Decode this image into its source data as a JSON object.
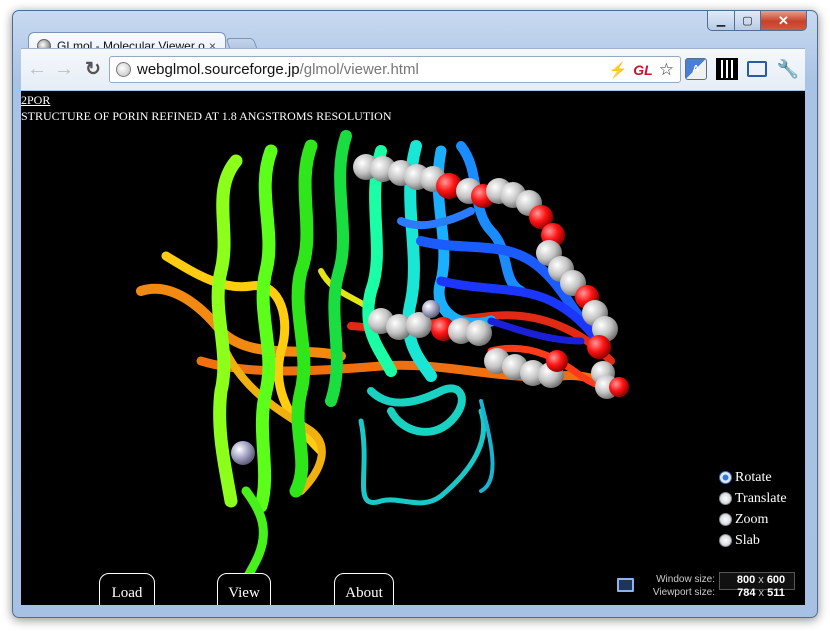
{
  "tab": {
    "title": "GLmol - Molecular Viewer on WebGL",
    "close_glyph": "×"
  },
  "window_controls": {
    "minimize": "▁",
    "maximize": "▢",
    "close": "✕"
  },
  "toolbar": {
    "back_glyph": "←",
    "forward_glyph": "→",
    "reload_glyph": "↻",
    "url_host": "webglmol.sourceforge.jp",
    "url_path": "/glmol/viewer.html",
    "gl_badge": "GL",
    "bolt_glyph": "⚡",
    "star_glyph": "☆",
    "translate_glyph": "A",
    "wrench_glyph": "🔧"
  },
  "structure": {
    "pdb_id": "2POR",
    "title": "STRUCTURE OF PORIN REFINED AT 1.8 ANGSTROMS RESOLUTION"
  },
  "modes": [
    {
      "label": "Rotate",
      "checked": true
    },
    {
      "label": "Translate",
      "checked": false
    },
    {
      "label": "Zoom",
      "checked": false
    },
    {
      "label": "Slab",
      "checked": false
    }
  ],
  "buttons": {
    "load": "Load",
    "view": "View",
    "about": "About"
  },
  "size_panel": {
    "window_label": "Window size:",
    "window_w": "800",
    "window_h": "600",
    "viewport_label": "Viewport size:",
    "viewport_w": "784",
    "viewport_h": "511",
    "times": "x"
  },
  "colors": {
    "viewer_background": "#000000",
    "ribbon_spectrum": [
      "#ff3b1a",
      "#ff8c1a",
      "#ffd51a",
      "#a8ff1a",
      "#1aff2e",
      "#1affb5",
      "#1ab8ff",
      "#1a36ff"
    ],
    "sphere_carbon": "#c8c8c8",
    "sphere_oxygen": "#ff1a1a",
    "sphere_ion": "#a9a9c8"
  }
}
